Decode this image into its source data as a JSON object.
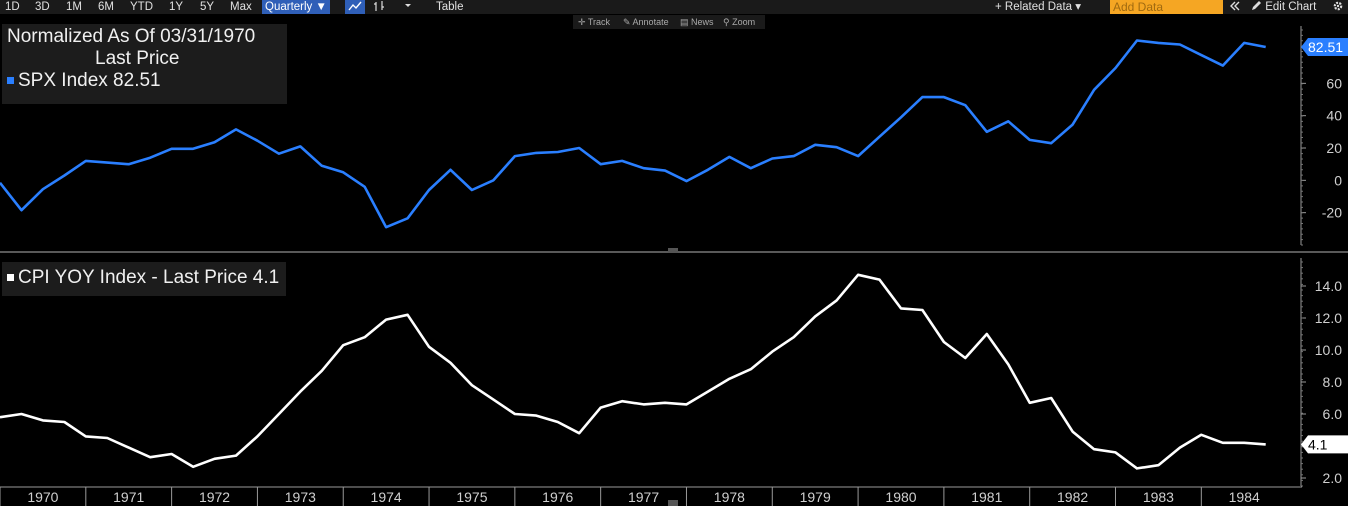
{
  "toolbar": {
    "ranges": [
      "1D",
      "3D",
      "1M",
      "6M",
      "YTD",
      "1Y",
      "5Y",
      "Max"
    ],
    "period": "Quarterly ▼",
    "table_label": "Table",
    "related_data": "+ Related Data ▾",
    "add_data_placeholder": "Add Data",
    "edit_chart": "Edit Chart",
    "icons": [
      "line-chart-icon",
      "bar-chart-icon",
      "dropdown-icon",
      "collapse-icon",
      "pencil-icon",
      "gear-icon"
    ]
  },
  "sub_toolbar": {
    "track": "Track",
    "annotate": "Annotate",
    "news": "News",
    "zoom": "Zoom"
  },
  "colors": {
    "spx": "#2a7fff",
    "cpi": "#ffffff",
    "axis_text": "#cfcfcf",
    "background": "#000000"
  },
  "legend_top": {
    "line1": "Normalized As Of 03/31/1970",
    "line2": "Last Price",
    "series_label": "SPX Index 82.51"
  },
  "legend_bottom": {
    "series_label": "CPI YOY Index - Last Price 4.1"
  },
  "chart_data": [
    {
      "type": "line",
      "series": [
        {
          "name": "SPX Index",
          "values": [
            -1.5,
            -18.5,
            -5.5,
            3,
            12,
            11,
            10,
            14,
            19.5,
            19.5,
            23.5,
            31.5,
            24.5,
            16.5,
            21,
            9,
            5,
            -4,
            -29,
            -23.5,
            -6,
            6.5,
            -6,
            0,
            15,
            17,
            17.5,
            20,
            10,
            12,
            7.5,
            6,
            -0.5,
            6.5,
            14.5,
            7.5,
            13.5,
            15,
            22,
            20.5,
            15,
            27,
            39,
            51.5,
            51.5,
            46.5,
            30,
            36.5,
            25,
            23,
            34.5,
            56,
            69.5,
            86.5,
            85,
            84,
            77.5,
            71,
            85,
            82.51
          ]
        }
      ],
      "x_start": 1969.75,
      "x_step": 0.25,
      "xlim": [
        1969.75,
        1984.9
      ],
      "ylim": [
        -40,
        93
      ],
      "yticks": [
        -20,
        0,
        20,
        40,
        60
      ],
      "last_value_label": "82.51"
    },
    {
      "type": "line",
      "series": [
        {
          "name": "CPI YOY Index",
          "values": [
            5.8,
            6.0,
            5.6,
            5.5,
            4.6,
            4.5,
            3.9,
            3.3,
            3.5,
            2.7,
            3.2,
            3.4,
            4.6,
            6.0,
            7.4,
            8.7,
            10.3,
            10.8,
            11.9,
            12.2,
            10.2,
            9.2,
            7.8,
            6.9,
            6.0,
            5.9,
            5.5,
            4.8,
            6.4,
            6.8,
            6.6,
            6.7,
            6.6,
            7.4,
            8.2,
            8.8,
            9.9,
            10.8,
            12.1,
            13.1,
            14.7,
            14.4,
            12.6,
            12.5,
            10.5,
            9.5,
            11.0,
            9.1,
            6.7,
            7.0,
            4.9,
            3.8,
            3.6,
            2.6,
            2.8,
            3.9,
            4.7,
            4.2,
            4.2,
            4.1
          ]
        }
      ],
      "x_start": 1969.75,
      "x_step": 0.25,
      "xlim": [
        1969.75,
        1984.9
      ],
      "ylim": [
        1.5,
        15.5
      ],
      "yticks": [
        "2.0",
        "4.0",
        "6.0",
        "8.0",
        "10.0",
        "12.0",
        "14.0"
      ],
      "last_value_label": "4.1"
    }
  ],
  "x_axis": {
    "years": [
      "1970",
      "1971",
      "1972",
      "1973",
      "1974",
      "1975",
      "1976",
      "1977",
      "1978",
      "1979",
      "1980",
      "1981",
      "1982",
      "1983",
      "1984"
    ]
  }
}
